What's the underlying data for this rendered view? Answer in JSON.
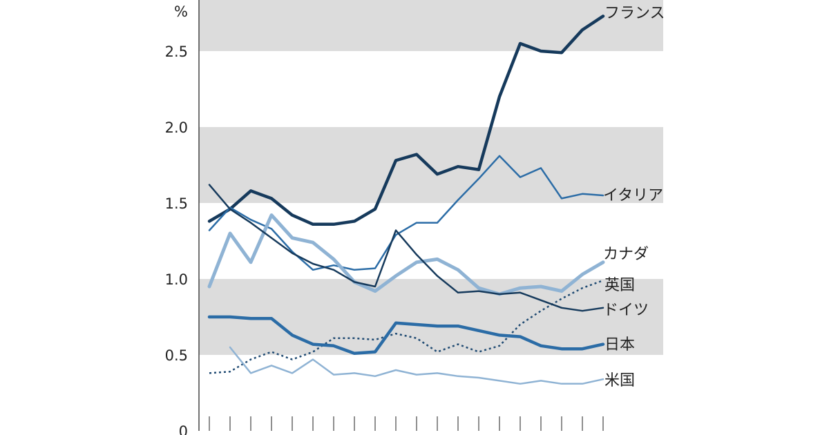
{
  "chart_data": {
    "type": "line",
    "title": "",
    "xlabel": "",
    "ylabel": "",
    "y_unit": "%",
    "ylim": [
      0,
      2.75
    ],
    "y_ticks": [
      {
        "value": 0,
        "label": "0"
      },
      {
        "value": 0.5,
        "label": "0.5"
      },
      {
        "value": 1.0,
        "label": "1.0"
      },
      {
        "value": 1.5,
        "label": "1.5"
      },
      {
        "value": 2.0,
        "label": "2.0"
      },
      {
        "value": 2.5,
        "label": "2.5"
      }
    ],
    "x_tick_count": 20,
    "grid": "alternating horizontal bands",
    "band_color": "#dcdcdc",
    "legend": "labels at right end of each line",
    "series": [
      {
        "name": "フランス",
        "color": "#163a5c",
        "width": 4.5,
        "dash": "",
        "start_index": 0,
        "values": [
          1.38,
          1.46,
          1.58,
          1.53,
          1.42,
          1.36,
          1.36,
          1.38,
          1.46,
          1.78,
          1.82,
          1.69,
          1.74,
          1.72,
          2.2,
          2.55,
          2.5,
          2.49,
          2.64,
          2.73
        ]
      },
      {
        "name": "イタリア",
        "color": "#2b6ca6",
        "width": 2.5,
        "dash": "",
        "start_index": 0,
        "values": [
          1.32,
          1.47,
          1.39,
          1.33,
          1.18,
          1.06,
          1.09,
          1.06,
          1.07,
          1.29,
          1.37,
          1.37,
          1.52,
          1.66,
          1.81,
          1.67,
          1.73,
          1.53,
          1.56,
          1.55
        ]
      },
      {
        "name": "カナダ",
        "color": "#8fb3d4",
        "width": 5,
        "dash": "",
        "start_index": 0,
        "values": [
          0.95,
          1.3,
          1.11,
          1.42,
          1.27,
          1.24,
          1.13,
          0.98,
          0.92,
          1.02,
          1.11,
          1.13,
          1.06,
          0.94,
          0.9,
          0.94,
          0.95,
          0.92,
          1.03,
          1.11
        ]
      },
      {
        "name": "英国",
        "color": "#1f4a72",
        "width": 2.5,
        "dash": "3 4",
        "start_index": 0,
        "values": [
          0.38,
          0.39,
          0.47,
          0.52,
          0.47,
          0.52,
          0.61,
          0.61,
          0.6,
          0.64,
          0.61,
          0.52,
          0.57,
          0.52,
          0.56,
          0.7,
          0.79,
          0.87,
          0.94,
          0.99
        ]
      },
      {
        "name": "ドイツ",
        "color": "#163a5c",
        "width": 2.5,
        "dash": "",
        "start_index": 0,
        "values": [
          1.62,
          1.46,
          1.37,
          1.27,
          1.17,
          1.1,
          1.06,
          0.98,
          0.95,
          1.32,
          1.16,
          1.02,
          0.91,
          0.92,
          0.9,
          0.91,
          0.86,
          0.81,
          0.79,
          0.81
        ]
      },
      {
        "name": "日本",
        "color": "#2b6ca6",
        "width": 4.5,
        "dash": "",
        "start_index": 0,
        "values": [
          0.75,
          0.75,
          0.74,
          0.74,
          0.63,
          0.57,
          0.56,
          0.51,
          0.52,
          0.71,
          0.7,
          0.69,
          0.69,
          0.66,
          0.63,
          0.62,
          0.56,
          0.54,
          0.54,
          0.57
        ]
      },
      {
        "name": "米国",
        "color": "#8fb3d4",
        "width": 2.5,
        "dash": "",
        "start_index": 1,
        "values": [
          0.55,
          0.38,
          0.43,
          0.38,
          0.47,
          0.37,
          0.38,
          0.36,
          0.4,
          0.37,
          0.38,
          0.36,
          0.35,
          0.33,
          0.31,
          0.33,
          0.31,
          0.31,
          0.34
        ]
      }
    ]
  }
}
